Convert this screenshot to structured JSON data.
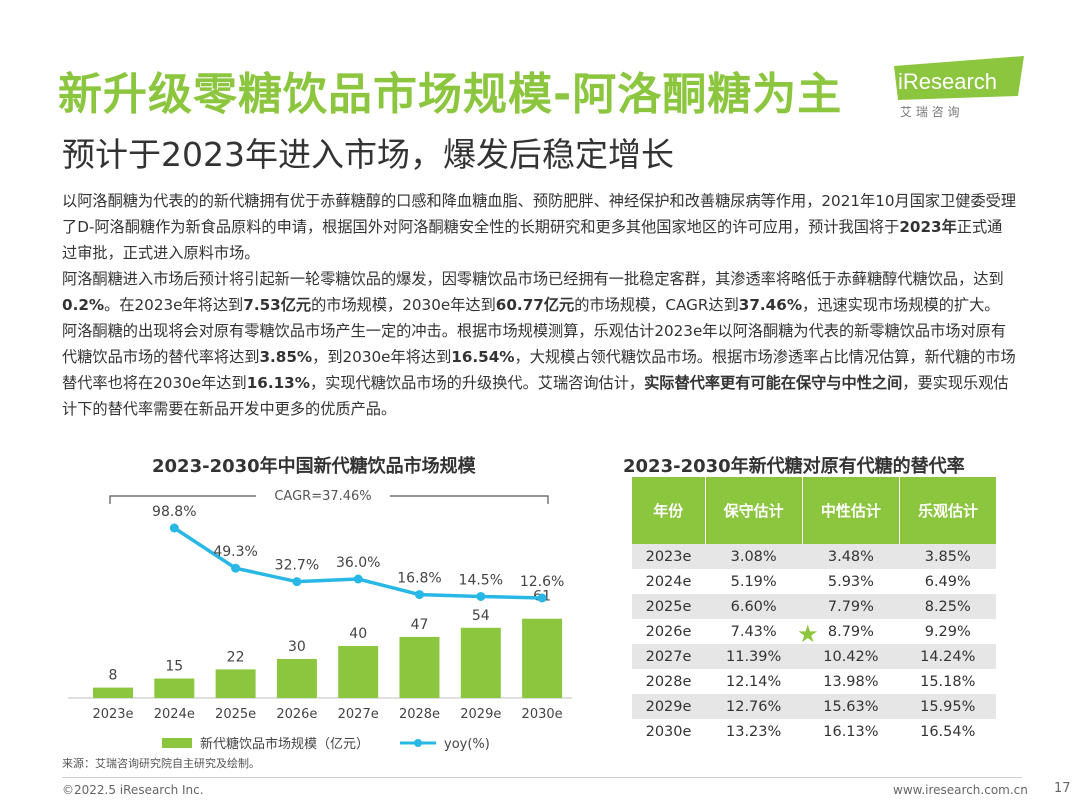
{
  "header": {
    "title": "新升级零糖饮品市场规模-阿洛酮糖为主",
    "subtitle": "预计于2023年进入市场，爆发后稳定增长",
    "logo_text": "iResearch",
    "logo_sub": "艾 瑞 咨 询"
  },
  "paragraphs": [
    [
      {
        "t": "以阿洛酮糖为代表的的新代糖拥有优于赤藓糖醇的口感和降血糖血脂、预防肥胖、神经保护和改善糖尿病等作用，2021年10月国家卫健委受理了D-阿洛酮糖作为新食品原料的申请，根据国外对阿洛酮糖安全性的长期研究和更多其他国家地区的许可应用，预计我国将于"
      },
      {
        "t": "2023年",
        "b": true
      },
      {
        "t": "正式通过审批，正式进入原料市场。"
      }
    ],
    [
      {
        "t": "阿洛酮糖进入市场后预计将引起新一轮零糖饮品的爆发，因零糖饮品市场已经拥有一批稳定客群，其渗透率将略低于赤藓糖醇代糖饮品，达到"
      },
      {
        "t": "0.2%",
        "b": true
      },
      {
        "t": "。在2023e年将达到"
      },
      {
        "t": "7.53亿元",
        "b": true
      },
      {
        "t": "的市场规模，2030e年达到"
      },
      {
        "t": "60.77亿元",
        "b": true
      },
      {
        "t": "的市场规模，CAGR达到"
      },
      {
        "t": "37.46%",
        "b": true
      },
      {
        "t": "，迅速实现市场规模的扩大。"
      }
    ],
    [
      {
        "t": "阿洛酮糖的出现将会对原有零糖饮品市场产生一定的冲击。根据市场规模测算，乐观估计2023e年以阿洛酮糖为代表的新零糖饮品市场对原有代糖饮品市场的替代率将达到"
      },
      {
        "t": "3.85%",
        "b": true
      },
      {
        "t": "，到2030e年将达到"
      },
      {
        "t": "16.54%",
        "b": true
      },
      {
        "t": "，大规模占领代糖饮品市场。根据市场渗透率占比情况估算，新代糖的市场替代率也将在2030e年达到"
      },
      {
        "t": "16.13%",
        "b": true
      },
      {
        "t": "，实现代糖饮品市场的升级换代。艾瑞咨询估计，"
      },
      {
        "t": "实际替代率更有可能在保守与中性之间",
        "b": true
      },
      {
        "t": "，要实现乐观估计下的替代率需要在新品开发中更多的优质产品。"
      }
    ]
  ],
  "chart_data": {
    "type": "bar",
    "title": "2023-2030年中国新代糖饮品市场规模",
    "categories": [
      "2023e",
      "2024e",
      "2025e",
      "2026e",
      "2027e",
      "2028e",
      "2029e",
      "2030e"
    ],
    "series": [
      {
        "name": "新代糖饮品市场规模（亿元）",
        "type": "bar",
        "values": [
          8,
          15,
          22,
          30,
          40,
          47,
          54,
          61
        ]
      },
      {
        "name": "yoy(%)",
        "type": "line",
        "values": [
          null,
          98.8,
          49.3,
          32.7,
          36.0,
          16.8,
          14.5,
          12.6
        ],
        "labels": [
          "",
          "98.8%",
          "49.3%",
          "32.7%",
          "36.0%",
          "16.8%",
          "14.5%",
          "12.6%"
        ]
      }
    ],
    "annotation": "CAGR=37.46%",
    "colors": {
      "bar": "#8cc63f",
      "line": "#29b8e5"
    }
  },
  "table": {
    "title": "2023-2030年新代糖对原有代糖的替代率",
    "headers": [
      "年份",
      "保守估计",
      "中性估计",
      "乐观估计"
    ],
    "rows": [
      [
        "2023e",
        "3.08%",
        "3.48%",
        "3.85%"
      ],
      [
        "2024e",
        "5.19%",
        "5.93%",
        "6.49%"
      ],
      [
        "2025e",
        "6.60%",
        "7.79%",
        "8.25%"
      ],
      [
        "2026e",
        "7.43%",
        "8.79%",
        "9.29%"
      ],
      [
        "2027e",
        "11.39%",
        "10.42%",
        "14.24%"
      ],
      [
        "2028e",
        "12.14%",
        "13.98%",
        "15.18%"
      ],
      [
        "2029e",
        "12.76%",
        "15.63%",
        "15.95%"
      ],
      [
        "2030e",
        "13.23%",
        "16.13%",
        "16.54%"
      ]
    ],
    "star_icon": "★"
  },
  "footer": {
    "source": "来源：艾瑞咨询研究院自主研究及绘制。",
    "copyright": "©2022.5 iResearch Inc.",
    "url": "www.iresearch.com.cn",
    "page": "17"
  }
}
